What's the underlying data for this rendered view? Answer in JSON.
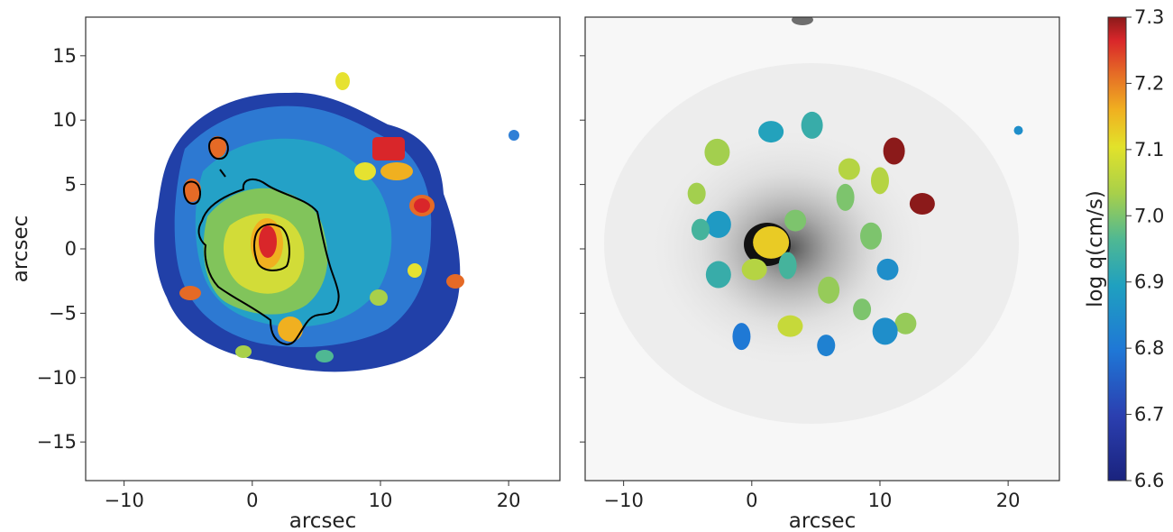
{
  "chart_data": [
    {
      "type": "heatmap",
      "panel": "left",
      "xlabel": "arcsec",
      "ylabel": "arcsec",
      "xlim": [
        -13,
        24
      ],
      "ylim": [
        -18,
        18
      ],
      "xticks": [
        -10,
        0,
        10,
        20
      ],
      "yticks": [
        15,
        10,
        5,
        0,
        -5,
        -10,
        -15
      ],
      "colorbar": "shared",
      "description_of_marks": "2D map of log q in arcsec grid with black contour outlining central region",
      "hotspots": [
        {
          "x": 1.5,
          "y": 0.3,
          "value": 7.3
        },
        {
          "x": 11.0,
          "y": 7.8,
          "value": 7.3
        },
        {
          "x": 13.6,
          "y": 3.5,
          "value": 7.3
        },
        {
          "x": -4.6,
          "y": 4.4,
          "value": 7.25
        },
        {
          "x": -2.4,
          "y": 7.8,
          "value": 7.2
        },
        {
          "x": 3.0,
          "y": -6.2,
          "value": 7.2
        },
        {
          "x": -4.6,
          "y": -3.2,
          "value": 7.2
        },
        {
          "x": 16.0,
          "y": -2.3,
          "value": 7.2
        }
      ]
    },
    {
      "type": "scatter",
      "panel": "right",
      "xlabel": "arcsec",
      "xlim": [
        -13,
        24
      ],
      "ylim": [
        -18,
        18
      ],
      "xticks": [
        -10,
        0,
        10,
        20
      ],
      "background": "grayscale image",
      "regions": [
        {
          "x": 1.5,
          "y": 0.5,
          "value": 7.13
        },
        {
          "x": 11.1,
          "y": 7.6,
          "value": 7.3
        },
        {
          "x": 13.3,
          "y": 3.5,
          "value": 7.3
        },
        {
          "x": 10.0,
          "y": 5.3,
          "value": 7.05
        },
        {
          "x": 7.6,
          "y": 6.2,
          "value": 7.05
        },
        {
          "x": -2.7,
          "y": 7.5,
          "value": 7.03
        },
        {
          "x": -4.3,
          "y": 4.3,
          "value": 7.03
        },
        {
          "x": 4.7,
          "y": 9.6,
          "value": 6.93
        },
        {
          "x": 1.5,
          "y": 9.1,
          "value": 6.9
        },
        {
          "x": 7.3,
          "y": 4.0,
          "value": 7.0
        },
        {
          "x": 3.4,
          "y": 2.2,
          "value": 7.0
        },
        {
          "x": -2.6,
          "y": 1.9,
          "value": 6.88
        },
        {
          "x": -4.0,
          "y": 1.5,
          "value": 6.95
        },
        {
          "x": 9.3,
          "y": 1.0,
          "value": 7.0
        },
        {
          "x": 0.2,
          "y": -1.6,
          "value": 7.05
        },
        {
          "x": 2.8,
          "y": -1.3,
          "value": 6.95
        },
        {
          "x": 10.6,
          "y": -1.6,
          "value": 6.85
        },
        {
          "x": -2.6,
          "y": -2.0,
          "value": 6.93
        },
        {
          "x": 8.6,
          "y": -4.7,
          "value": 7.0
        },
        {
          "x": 6.0,
          "y": -3.2,
          "value": 7.02
        },
        {
          "x": 3.0,
          "y": -6.0,
          "value": 7.07
        },
        {
          "x": -0.8,
          "y": -6.8,
          "value": 6.8
        },
        {
          "x": 12.0,
          "y": -5.8,
          "value": 7.02
        },
        {
          "x": 10.4,
          "y": -6.4,
          "value": 6.85
        },
        {
          "x": 5.8,
          "y": -7.5,
          "value": 6.82
        },
        {
          "x": 20.8,
          "y": 9.2,
          "value": 6.85
        }
      ]
    }
  ],
  "colorbar": {
    "label": "log q(cm/s)",
    "min": 6.6,
    "max": 7.3,
    "ticks": [
      7.3,
      7.2,
      7.1,
      7.0,
      6.9,
      6.8,
      6.7,
      6.6
    ],
    "colormap": "jet"
  },
  "labels": {
    "left_xlabel": "arcsec",
    "left_ylabel": "arcsec",
    "right_xlabel": "arcsec",
    "cbar_label": "log q(cm/s)"
  }
}
